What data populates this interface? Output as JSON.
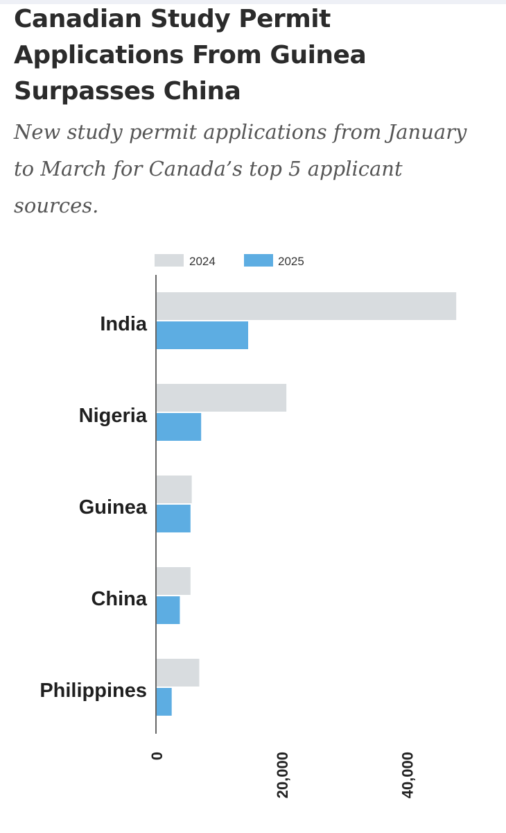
{
  "title": "Canadian Study Permit Applications From Guinea Surpasses China",
  "subtitle": "New study permit applications from January to March for Canada’s top 5 applicant sources.",
  "colors": {
    "series_2024": "#d8dcdf",
    "series_2025": "#5dade2",
    "axis": "#333333"
  },
  "chart_data": {
    "type": "bar",
    "orientation": "horizontal",
    "title": "Canadian Study Permit Applications From Guinea Surpasses China",
    "subtitle": "New study permit applications from January to March for Canada’s top 5 applicant sources.",
    "categories": [
      "India",
      "Nigeria",
      "Guinea",
      "China",
      "Philippines"
    ],
    "series": [
      {
        "name": "2024",
        "values": [
          47800,
          20700,
          5600,
          5400,
          6800
        ]
      },
      {
        "name": "2025",
        "values": [
          14600,
          7100,
          5400,
          3700,
          2400
        ]
      }
    ],
    "xlim": [
      0,
      48000
    ],
    "xticks": [
      0,
      20000,
      40000
    ],
    "xtick_labels": [
      "0",
      "20,000",
      "40,000"
    ],
    "legend_position": "top",
    "grid": false
  }
}
